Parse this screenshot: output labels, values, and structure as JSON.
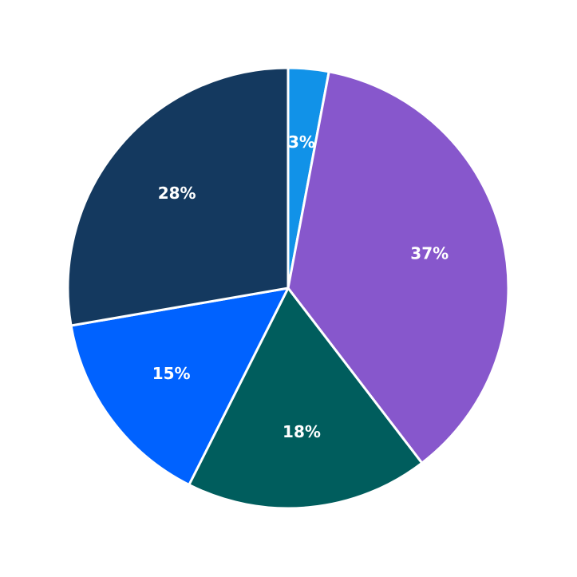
{
  "chart_data": {
    "type": "pie",
    "values": [
      3,
      37,
      18,
      15,
      28
    ],
    "value_labels": [
      "3%",
      "37%",
      "18%",
      "15%",
      "28%"
    ],
    "colors": [
      "#1192e8",
      "#8757cc",
      "#005d5d",
      "#0062ff",
      "#14395f"
    ]
  }
}
